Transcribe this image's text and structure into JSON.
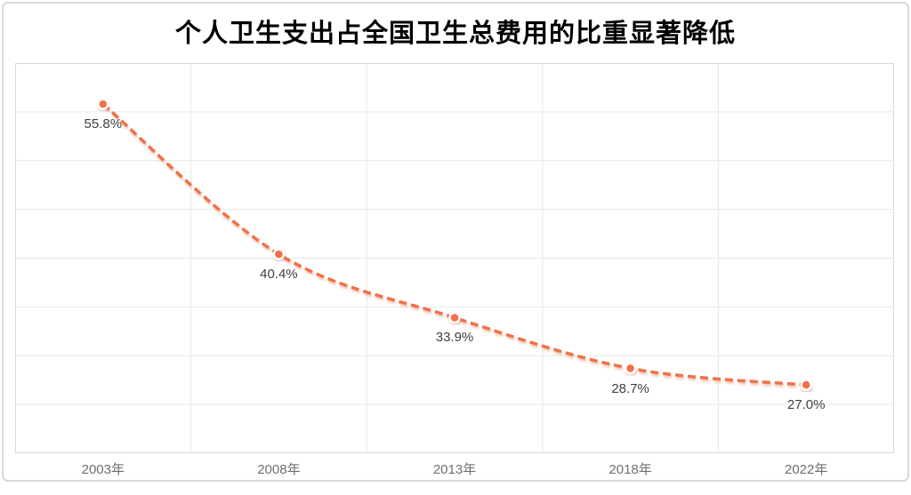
{
  "title": "个人卫生支出占全国卫生总费用的比重显著降低",
  "colors": {
    "background": "#FFFFFF",
    "line": "#F1704A",
    "marker_fill": "#F1704A",
    "marker_ring": "#FFFFFF",
    "line_shadow": "#D96A3F",
    "grid": "#E8E8E8",
    "plot_border": "#D9D9D9",
    "outer_border": "#D9D9D9",
    "data_label": "#3F3F3F",
    "axis_label": "#6F6F6F",
    "title_color": "#000000"
  },
  "chart_data": {
    "type": "line",
    "title": "个人卫生支出占全国卫生总费用的比重显著降低",
    "categories": [
      "2003年",
      "2008年",
      "2013年",
      "2018年",
      "2022年"
    ],
    "values": [
      55.8,
      40.4,
      33.9,
      28.7,
      27.0
    ],
    "point_labels": [
      "55.8%",
      "40.4%",
      "33.9%",
      "28.7%",
      "27.0%"
    ],
    "xlabel": "",
    "ylabel": "",
    "ylim": [
      20,
      60
    ],
    "y_gridline_step": 5,
    "x_gridlines": "between-categories",
    "grid": true,
    "legend": "none",
    "line_style": "dashed",
    "marker": "circle",
    "data_labels_position": "below"
  }
}
